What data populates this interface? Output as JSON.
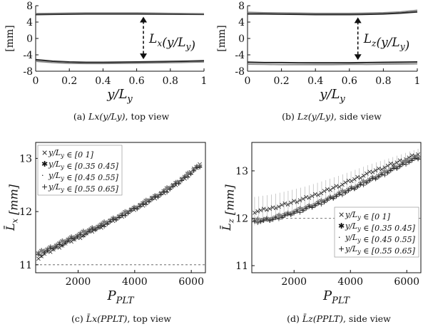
{
  "colors": {
    "axis": "#111111",
    "ref": "#555555",
    "dark": "#1a1a1a",
    "mid": "#7a7a7a",
    "light": "#a0a0a0",
    "err": "#9a9a9a"
  },
  "chart_data": [
    {
      "type": "line",
      "panel": "a",
      "caption": "(a) L_x(y/L_y), top view",
      "caption_label": "(a)",
      "caption_math": "Lx(y/Ly)",
      "caption_tail": ", top view",
      "ylabel": "[mm]",
      "xlabel": "y/L_y",
      "xlim": [
        0,
        1
      ],
      "ylim": [
        -8,
        8
      ],
      "xticks": [
        "0",
        "0.2",
        "0.4",
        "0.6",
        "0.8",
        "1"
      ],
      "yticks": [
        "8",
        "4",
        "0",
        "-4",
        "-8"
      ],
      "annotation": "L_x(y/L_y)",
      "annotation_x": 0.64,
      "x": [
        0,
        0.1,
        0.2,
        0.3,
        0.4,
        0.5,
        0.6,
        0.7,
        0.8,
        0.9,
        1.0
      ],
      "series": [
        {
          "values": [
            5.85,
            5.9,
            5.95,
            6.0,
            6.0,
            6.0,
            6.0,
            5.98,
            5.95,
            5.92,
            5.9
          ]
        },
        {
          "values": [
            6.1,
            6.15,
            6.2,
            6.25,
            6.25,
            6.25,
            6.25,
            6.2,
            6.15,
            6.1,
            6.05
          ]
        },
        {
          "values": [
            -5.2,
            -5.55,
            -5.75,
            -5.85,
            -5.85,
            -5.8,
            -5.75,
            -5.7,
            -5.62,
            -5.55,
            -5.45
          ]
        },
        {
          "values": [
            -5.6,
            -5.9,
            -6.1,
            -6.15,
            -6.15,
            -6.1,
            -6.05,
            -6.0,
            -5.92,
            -5.85,
            -5.75
          ]
        }
      ]
    },
    {
      "type": "line",
      "panel": "b",
      "caption": "(b) L_z(y/L_y), side view",
      "caption_label": "(b)",
      "caption_math": "Lz(y/Ly)",
      "caption_tail": ", side view",
      "ylabel": "[mm]",
      "xlabel": "y/L_y",
      "xlim": [
        0,
        1
      ],
      "ylim": [
        -8,
        8
      ],
      "xticks": [
        "0",
        "0.2",
        "0.4",
        "0.6",
        "0.8",
        "1"
      ],
      "yticks": [
        "8",
        "4",
        "0",
        "-4",
        "-8"
      ],
      "annotation": "L_z(y/L_y)",
      "annotation_x": 0.65,
      "x": [
        0,
        0.1,
        0.2,
        0.3,
        0.4,
        0.5,
        0.6,
        0.7,
        0.8,
        0.9,
        1.0
      ],
      "series": [
        {
          "values": [
            6.0,
            6.0,
            5.95,
            5.9,
            5.85,
            5.85,
            5.85,
            5.9,
            6.0,
            6.2,
            6.5
          ]
        },
        {
          "values": [
            6.4,
            6.3,
            6.25,
            6.2,
            6.15,
            6.15,
            6.15,
            6.2,
            6.3,
            6.5,
            6.9
          ]
        },
        {
          "values": [
            -5.8,
            -5.9,
            -5.9,
            -5.95,
            -5.95,
            -5.95,
            -5.95,
            -5.9,
            -5.85,
            -5.8,
            -5.75
          ]
        },
        {
          "values": [
            -6.3,
            -6.35,
            -6.4,
            -6.4,
            -6.4,
            -6.4,
            -6.35,
            -6.35,
            -6.3,
            -6.25,
            -6.2
          ]
        }
      ]
    },
    {
      "type": "scatter",
      "panel": "c",
      "caption": "(c) L̄_x(P_PLT), top view",
      "caption_label": "(c)",
      "caption_math": "L̄x(PPLT)",
      "caption_tail": ", top view",
      "ylabel": "L̄_x [mm]",
      "xlabel": "P_PLT",
      "xlim": [
        500,
        6500
      ],
      "ylim": [
        10.85,
        13.3
      ],
      "xticks": [
        2000,
        4000,
        6000
      ],
      "yticks": [
        11,
        12,
        13
      ],
      "reference_y": 11.0,
      "legend_position": "top-left",
      "legend": [
        {
          "marker": "×",
          "label": "y/L_y ∈ [0 1]"
        },
        {
          "marker": "✱",
          "label": "y/L_y ∈ [0.35 0.45]"
        },
        {
          "marker": "·",
          "label": "y/L_y ∈ [0.45 0.55]"
        },
        {
          "marker": "+",
          "label": "y/L_y ∈ [0.55 0.65]"
        }
      ],
      "x": [
        600,
        1200,
        1800,
        2400,
        3000,
        3600,
        4200,
        4800,
        5400,
        6000,
        6300
      ],
      "series": [
        {
          "marker": "×",
          "values": [
            11.15,
            11.32,
            11.47,
            11.62,
            11.78,
            11.95,
            12.12,
            12.3,
            12.5,
            12.75,
            12.9
          ]
        },
        {
          "marker": "✱",
          "values": [
            11.22,
            11.37,
            11.52,
            11.66,
            11.8,
            11.96,
            12.13,
            12.31,
            12.51,
            12.75,
            12.88
          ]
        },
        {
          "marker": "·",
          "values": [
            11.2,
            11.35,
            11.5,
            11.64,
            11.79,
            11.95,
            12.12,
            12.3,
            12.5,
            12.74,
            12.87
          ]
        },
        {
          "marker": "+",
          "values": [
            11.18,
            11.34,
            11.49,
            11.63,
            11.78,
            11.94,
            12.11,
            12.29,
            12.49,
            12.73,
            12.86
          ]
        }
      ]
    },
    {
      "type": "scatter",
      "panel": "d",
      "caption": "(d) L̄_z(P_PLT), side view",
      "caption_label": "(d)",
      "caption_math": "L̄z(PPLT)",
      "caption_tail": ", side view",
      "ylabel": "L̄_z [mm]",
      "xlabel": "P_PLT",
      "xlim": [
        500,
        6500
      ],
      "ylim": [
        10.85,
        13.6
      ],
      "xticks": [
        2000,
        4000,
        6000
      ],
      "yticks": [
        11,
        12,
        13
      ],
      "reference_y": 12.0,
      "legend_position": "bottom-right",
      "legend": [
        {
          "marker": "×",
          "label": "y/L_y ∈ [0 1]"
        },
        {
          "marker": "✱",
          "label": "y/L_y ∈ [0.35 0.45]"
        },
        {
          "marker": "·",
          "label": "y/L_y ∈ [0.45 0.55]"
        },
        {
          "marker": "+",
          "label": "y/L_y ∈ [0.55 0.65]"
        }
      ],
      "x": [
        600,
        1200,
        1800,
        2400,
        3000,
        3600,
        4200,
        4800,
        5400,
        6000,
        6400
      ],
      "error": 0.3,
      "series": [
        {
          "marker": "×",
          "values": [
            12.15,
            12.22,
            12.32,
            12.43,
            12.56,
            12.7,
            12.85,
            13.0,
            13.13,
            13.27,
            13.36
          ]
        },
        {
          "marker": "✱",
          "values": [
            11.95,
            12.0,
            12.1,
            12.22,
            12.36,
            12.52,
            12.68,
            12.85,
            13.02,
            13.2,
            13.3
          ]
        },
        {
          "marker": "·",
          "values": [
            11.94,
            11.99,
            12.09,
            12.21,
            12.35,
            12.51,
            12.67,
            12.84,
            13.01,
            13.19,
            13.29
          ]
        },
        {
          "marker": "+",
          "values": [
            11.93,
            11.98,
            12.08,
            12.2,
            12.34,
            12.5,
            12.66,
            12.83,
            13.0,
            13.18,
            13.28
          ]
        }
      ]
    }
  ]
}
